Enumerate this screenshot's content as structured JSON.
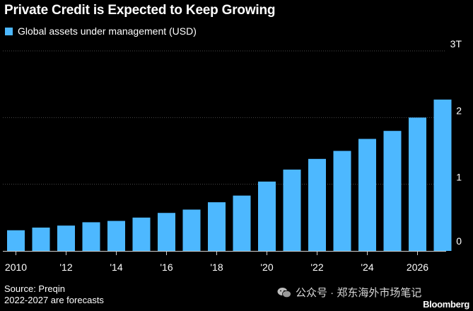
{
  "header": {
    "title": "Private Credit is Expected to Keep Growing",
    "legend_label": "Global assets under management (USD)"
  },
  "footer": {
    "source": "Source: Preqin",
    "note": "2022-2027 are forecasts",
    "watermark": "公众号 · 郑东海外市场笔记",
    "brand": "Bloomberg"
  },
  "colors": {
    "bar": "#4db8ff",
    "grid": "#4a4a4a",
    "background": "#000000"
  },
  "chart_data": {
    "type": "bar",
    "title": "Private Credit is Expected to Keep Growing",
    "xlabel": "",
    "ylabel": "",
    "ylim": [
      0,
      3
    ],
    "y_unit": "trillion USD",
    "y_ticks": [
      {
        "value": 0,
        "label": "0"
      },
      {
        "value": 1,
        "label": "1"
      },
      {
        "value": 2,
        "label": "2"
      },
      {
        "value": 3,
        "label": "3T"
      }
    ],
    "categories": [
      "2010",
      "2011",
      "2012",
      "2013",
      "2014",
      "2015",
      "2016",
      "2017",
      "2018",
      "2019",
      "2020",
      "2021",
      "2022",
      "2023",
      "2024",
      "2025",
      "2026",
      "2027"
    ],
    "x_tick_labels": [
      {
        "category": "2010",
        "label": "2010"
      },
      {
        "category": "2012",
        "label": "'12"
      },
      {
        "category": "2014",
        "label": "'14"
      },
      {
        "category": "2016",
        "label": "'16"
      },
      {
        "category": "2018",
        "label": "'18"
      },
      {
        "category": "2020",
        "label": "'20"
      },
      {
        "category": "2022",
        "label": "'22"
      },
      {
        "category": "2024",
        "label": "'24"
      },
      {
        "category": "2026",
        "label": "2026"
      }
    ],
    "series": [
      {
        "name": "Global assets under management (USD)",
        "values": [
          0.31,
          0.35,
          0.38,
          0.43,
          0.45,
          0.5,
          0.57,
          0.62,
          0.73,
          0.83,
          1.04,
          1.22,
          1.38,
          1.5,
          1.68,
          1.8,
          2.0,
          2.27
        ]
      }
    ],
    "grid": true,
    "forecast_from": "2022"
  }
}
